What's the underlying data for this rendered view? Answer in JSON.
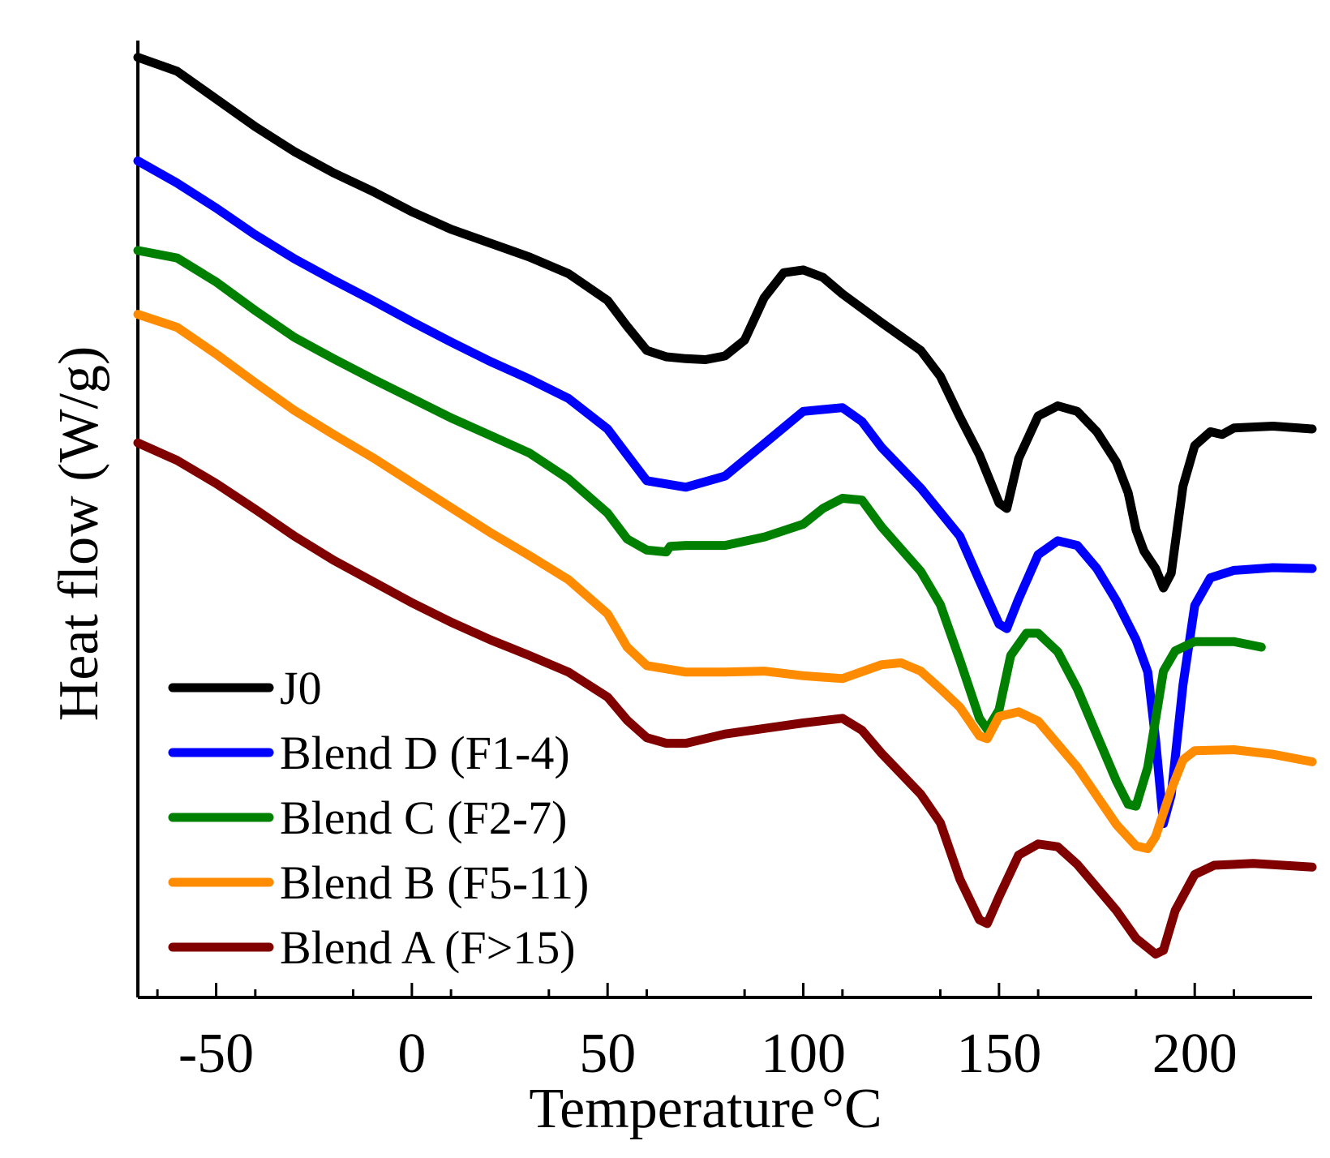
{
  "chart_data": {
    "type": "line",
    "title": "",
    "xlabel": "Temperature",
    "xlabel_unit": "°C",
    "ylabel": "Heat flow (W/g)",
    "xlim": [
      -70,
      230
    ],
    "ylim": [
      0,
      100
    ],
    "x_ticks": [
      -50,
      0,
      50,
      100,
      150,
      200
    ],
    "x_tick_labels": [
      "-50",
      "0",
      "50",
      "100",
      "150",
      "200"
    ],
    "y_ticks_shown": false,
    "grid": false,
    "legend_position": "bottom-left",
    "series": [
      {
        "name": "J0",
        "color": "#000000",
        "points": [
          [
            -70,
            93.8
          ],
          [
            -60,
            92.3
          ],
          [
            -50,
            89.3
          ],
          [
            -40,
            86.3
          ],
          [
            -30,
            83.6
          ],
          [
            -20,
            81.3
          ],
          [
            -10,
            79.3
          ],
          [
            0,
            77.1
          ],
          [
            10,
            75.2
          ],
          [
            20,
            73.7
          ],
          [
            30,
            72.2
          ],
          [
            40,
            70.4
          ],
          [
            50,
            67.5
          ],
          [
            55,
            64.7
          ],
          [
            60,
            62.1
          ],
          [
            65,
            61.4
          ],
          [
            70,
            61.2
          ],
          [
            75,
            61.1
          ],
          [
            80,
            61.5
          ],
          [
            85,
            63.2
          ],
          [
            90,
            67.8
          ],
          [
            95,
            70.5
          ],
          [
            100,
            70.8
          ],
          [
            105,
            70.0
          ],
          [
            110,
            68.2
          ],
          [
            120,
            65.1
          ],
          [
            130,
            62.1
          ],
          [
            135,
            59.3
          ],
          [
            140,
            54.9
          ],
          [
            145,
            50.8
          ],
          [
            150,
            45.6
          ],
          [
            152,
            45.0
          ],
          [
            155,
            50.4
          ],
          [
            160,
            55.0
          ],
          [
            165,
            56.1
          ],
          [
            170,
            55.5
          ],
          [
            175,
            53.3
          ],
          [
            180,
            50.0
          ],
          [
            183,
            46.7
          ],
          [
            185,
            42.7
          ],
          [
            187,
            40.4
          ],
          [
            190,
            38.5
          ],
          [
            192,
            36.4
          ],
          [
            194,
            38.0
          ],
          [
            197,
            47.4
          ],
          [
            200,
            51.8
          ],
          [
            204,
            53.3
          ],
          [
            207,
            53.0
          ],
          [
            210,
            53.7
          ],
          [
            220,
            53.9
          ],
          [
            230,
            53.6
          ]
        ]
      },
      {
        "name": "Blend D (F1-4)",
        "color": "#0000ff",
        "points": [
          [
            -70,
            82.6
          ],
          [
            -60,
            80.2
          ],
          [
            -50,
            77.5
          ],
          [
            -40,
            74.6
          ],
          [
            -30,
            72.0
          ],
          [
            -20,
            69.7
          ],
          [
            -10,
            67.5
          ],
          [
            0,
            65.2
          ],
          [
            10,
            63.0
          ],
          [
            20,
            60.9
          ],
          [
            30,
            59.0
          ],
          [
            40,
            56.9
          ],
          [
            50,
            53.6
          ],
          [
            55,
            50.8
          ],
          [
            60,
            48.0
          ],
          [
            70,
            47.3
          ],
          [
            80,
            48.5
          ],
          [
            90,
            52.0
          ],
          [
            100,
            55.5
          ],
          [
            110,
            55.9
          ],
          [
            115,
            54.4
          ],
          [
            120,
            51.6
          ],
          [
            130,
            47.2
          ],
          [
            140,
            42.0
          ],
          [
            145,
            37.2
          ],
          [
            150,
            32.5
          ],
          [
            152,
            32.0
          ],
          [
            155,
            35.2
          ],
          [
            160,
            40.0
          ],
          [
            165,
            41.5
          ],
          [
            170,
            41.0
          ],
          [
            175,
            38.5
          ],
          [
            180,
            35.0
          ],
          [
            185,
            30.8
          ],
          [
            188,
            27.3
          ],
          [
            190,
            20.0
          ],
          [
            192,
            10.9
          ],
          [
            194,
            14.0
          ],
          [
            197,
            25.9
          ],
          [
            200,
            34.5
          ],
          [
            204,
            37.5
          ],
          [
            210,
            38.3
          ],
          [
            220,
            38.6
          ],
          [
            230,
            38.5
          ]
        ]
      },
      {
        "name": "Blend C (F2-7)",
        "color": "#008000",
        "points": [
          [
            -70,
            72.9
          ],
          [
            -60,
            72.1
          ],
          [
            -50,
            69.5
          ],
          [
            -40,
            66.4
          ],
          [
            -30,
            63.5
          ],
          [
            -20,
            61.2
          ],
          [
            -10,
            59.0
          ],
          [
            0,
            56.9
          ],
          [
            10,
            54.8
          ],
          [
            20,
            52.9
          ],
          [
            30,
            51.0
          ],
          [
            40,
            48.2
          ],
          [
            50,
            44.5
          ],
          [
            55,
            41.7
          ],
          [
            60,
            40.5
          ],
          [
            65,
            40.3
          ],
          [
            66,
            40.9
          ],
          [
            70,
            41.0
          ],
          [
            80,
            41.0
          ],
          [
            90,
            41.9
          ],
          [
            100,
            43.3
          ],
          [
            105,
            45.0
          ],
          [
            110,
            46.1
          ],
          [
            115,
            45.9
          ],
          [
            120,
            43.0
          ],
          [
            130,
            38.2
          ],
          [
            135,
            34.6
          ],
          [
            140,
            28.6
          ],
          [
            145,
            22.3
          ],
          [
            147,
            21.1
          ],
          [
            150,
            23.2
          ],
          [
            153,
            29.1
          ],
          [
            157,
            31.5
          ],
          [
            160,
            31.5
          ],
          [
            165,
            29.5
          ],
          [
            170,
            25.5
          ],
          [
            175,
            20.5
          ],
          [
            180,
            15.5
          ],
          [
            183,
            13.0
          ],
          [
            185,
            12.8
          ],
          [
            188,
            17.0
          ],
          [
            192,
            27.4
          ],
          [
            195,
            29.6
          ],
          [
            200,
            30.6
          ],
          [
            210,
            30.6
          ],
          [
            217,
            30.0
          ]
        ]
      },
      {
        "name": "Blend B (F5-11)",
        "color": "#ff8c00",
        "points": [
          [
            -70,
            66.0
          ],
          [
            -60,
            64.6
          ],
          [
            -50,
            61.7
          ],
          [
            -40,
            58.6
          ],
          [
            -30,
            55.6
          ],
          [
            -20,
            53.0
          ],
          [
            -10,
            50.5
          ],
          [
            0,
            47.8
          ],
          [
            10,
            45.1
          ],
          [
            20,
            42.4
          ],
          [
            30,
            39.9
          ],
          [
            40,
            37.3
          ],
          [
            50,
            33.6
          ],
          [
            55,
            30.0
          ],
          [
            60,
            28.0
          ],
          [
            70,
            27.3
          ],
          [
            80,
            27.3
          ],
          [
            90,
            27.4
          ],
          [
            100,
            26.9
          ],
          [
            110,
            26.6
          ],
          [
            120,
            28.1
          ],
          [
            125,
            28.3
          ],
          [
            130,
            27.4
          ],
          [
            135,
            25.5
          ],
          [
            140,
            23.5
          ],
          [
            145,
            20.4
          ],
          [
            147,
            20.1
          ],
          [
            150,
            22.5
          ],
          [
            155,
            23.0
          ],
          [
            160,
            22.0
          ],
          [
            170,
            17.0
          ],
          [
            180,
            10.8
          ],
          [
            185,
            8.5
          ],
          [
            188,
            8.2
          ],
          [
            190,
            9.5
          ],
          [
            194,
            14.6
          ],
          [
            197,
            17.8
          ],
          [
            200,
            18.8
          ],
          [
            210,
            18.9
          ],
          [
            220,
            18.4
          ],
          [
            230,
            17.6
          ]
        ]
      },
      {
        "name": "Blend A (F>15)",
        "color": "#800000",
        "points": [
          [
            -70,
            52.1
          ],
          [
            -60,
            50.2
          ],
          [
            -50,
            47.7
          ],
          [
            -40,
            44.9
          ],
          [
            -30,
            42.0
          ],
          [
            -20,
            39.4
          ],
          [
            -10,
            37.1
          ],
          [
            0,
            34.8
          ],
          [
            10,
            32.7
          ],
          [
            20,
            30.8
          ],
          [
            30,
            29.1
          ],
          [
            40,
            27.3
          ],
          [
            50,
            24.6
          ],
          [
            55,
            22.1
          ],
          [
            60,
            20.2
          ],
          [
            65,
            19.6
          ],
          [
            70,
            19.6
          ],
          [
            80,
            20.6
          ],
          [
            90,
            21.2
          ],
          [
            100,
            21.8
          ],
          [
            110,
            22.3
          ],
          [
            115,
            21.0
          ],
          [
            120,
            18.5
          ],
          [
            130,
            14.1
          ],
          [
            135,
            11.0
          ],
          [
            140,
            4.9
          ],
          [
            145,
            0.5
          ],
          [
            147,
            0.1
          ],
          [
            150,
            3.0
          ],
          [
            155,
            7.5
          ],
          [
            160,
            8.7
          ],
          [
            165,
            8.4
          ],
          [
            170,
            6.5
          ],
          [
            180,
            1.5
          ],
          [
            185,
            -1.5
          ],
          [
            190,
            -3.2
          ],
          [
            192,
            -2.8
          ],
          [
            195,
            1.5
          ],
          [
            200,
            5.4
          ],
          [
            205,
            6.4
          ],
          [
            215,
            6.6
          ],
          [
            230,
            6.2
          ]
        ]
      }
    ]
  }
}
